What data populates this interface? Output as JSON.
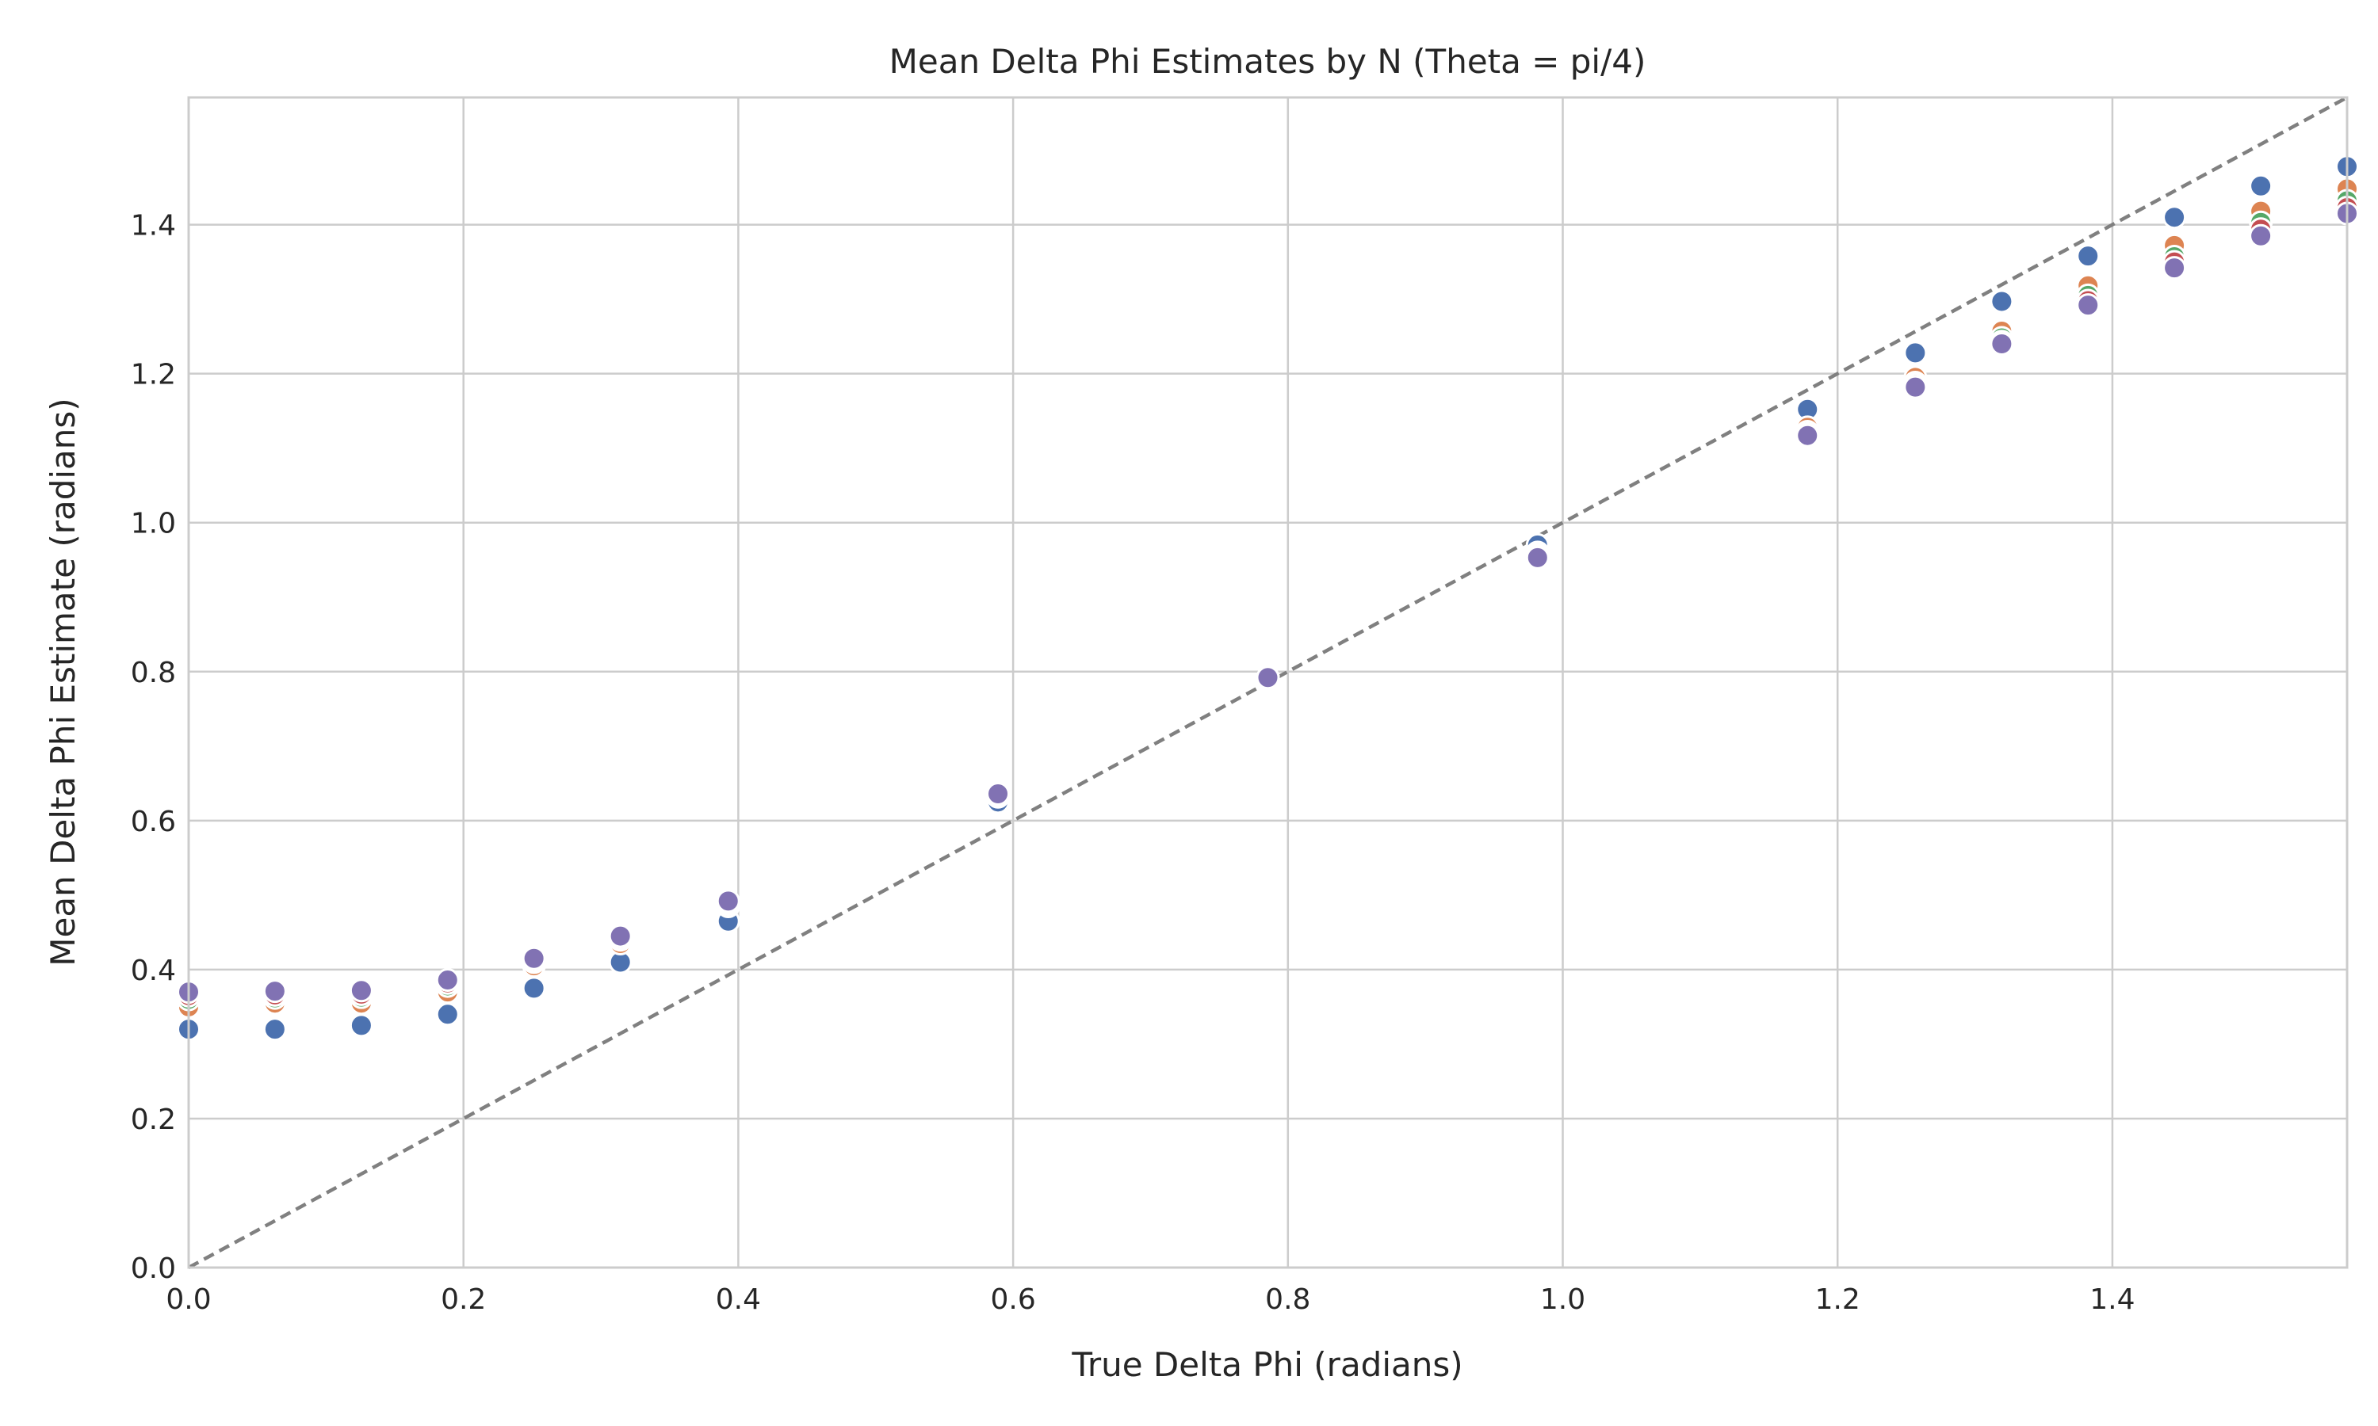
{
  "chart_data": {
    "type": "scatter",
    "title": "Mean Delta Phi Estimates by N (Theta = pi/4)",
    "xlabel": "True Delta Phi (radians)",
    "ylabel": "Mean Delta Phi Estimate (radians)",
    "xlim": [
      0,
      1.5708
    ],
    "ylim": [
      0,
      1.5708
    ],
    "xticks": [
      0.0,
      0.2,
      0.4,
      0.6,
      0.8,
      1.0,
      1.2,
      1.4
    ],
    "yticks": [
      0.0,
      0.2,
      0.4,
      0.6,
      0.8,
      1.0,
      1.2,
      1.4
    ],
    "xtick_labels": [
      "0.0",
      "0.2",
      "0.4",
      "0.6",
      "0.8",
      "1.0",
      "1.2",
      "1.4"
    ],
    "ytick_labels": [
      "0.0",
      "0.2",
      "0.4",
      "0.6",
      "0.8",
      "1.0",
      "1.2",
      "1.4"
    ],
    "grid": true,
    "reference_line": {
      "style": "dashed",
      "color": "#808080",
      "points": [
        [
          0,
          0
        ],
        [
          1.5708,
          1.5708
        ]
      ]
    },
    "zero_line": {
      "style": "dashed",
      "color": "#cccccc",
      "y": 0
    },
    "x": [
      0.0,
      0.0628,
      0.1257,
      0.1885,
      0.2513,
      0.3142,
      0.3927,
      0.589,
      0.7854,
      0.9817,
      1.1781,
      1.2566,
      1.3195,
      1.3823,
      1.4451,
      1.508,
      1.5708
    ],
    "series": [
      {
        "color": "#4c72b0",
        "values": [
          0.32,
          0.32,
          0.325,
          0.34,
          0.375,
          0.41,
          0.465,
          0.625,
          0.792,
          0.97,
          1.152,
          1.228,
          1.297,
          1.358,
          1.41,
          1.452,
          1.478
        ]
      },
      {
        "color": "#dd8452",
        "values": [
          0.35,
          0.355,
          0.355,
          0.37,
          0.405,
          0.435,
          0.485,
          0.632,
          0.792,
          0.96,
          1.128,
          1.195,
          1.257,
          1.318,
          1.372,
          1.418,
          1.448
        ]
      },
      {
        "color": "#55a868",
        "values": [
          0.36,
          0.362,
          0.363,
          0.378,
          0.41,
          0.44,
          0.488,
          0.634,
          0.792,
          0.957,
          1.122,
          1.188,
          1.248,
          1.305,
          1.357,
          1.403,
          1.432
        ]
      },
      {
        "color": "#c44e52",
        "values": [
          0.365,
          0.366,
          0.367,
          0.382,
          0.412,
          0.442,
          0.49,
          0.635,
          0.792,
          0.955,
          1.119,
          1.185,
          1.243,
          1.298,
          1.35,
          1.394,
          1.423
        ]
      },
      {
        "color": "#8172b3",
        "values": [
          0.37,
          0.371,
          0.372,
          0.386,
          0.415,
          0.445,
          0.492,
          0.636,
          0.792,
          0.953,
          1.117,
          1.182,
          1.24,
          1.292,
          1.342,
          1.385,
          1.415
        ]
      }
    ]
  }
}
